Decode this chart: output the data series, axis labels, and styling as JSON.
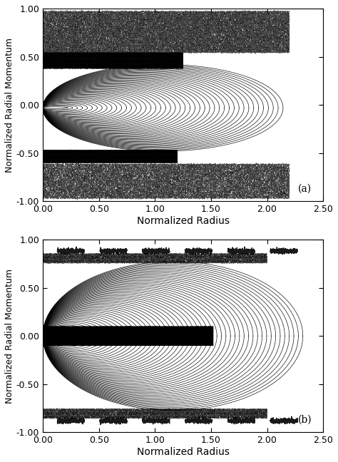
{
  "xlabel": "Normalized Radius",
  "ylabel": "Normalized Radial Momentum",
  "xlim": [
    0.0,
    2.5
  ],
  "ylim": [
    -1.0,
    1.0
  ],
  "xticks": [
    0.0,
    0.5,
    1.0,
    1.5,
    2.0,
    2.5
  ],
  "yticks": [
    -1.0,
    -0.5,
    0.0,
    0.5,
    1.0
  ],
  "background_color": "#ffffff",
  "figsize": [
    4.74,
    6.48
  ],
  "dpi": 100,
  "panel_a_label": "(a)",
  "panel_b_label": "(b)"
}
